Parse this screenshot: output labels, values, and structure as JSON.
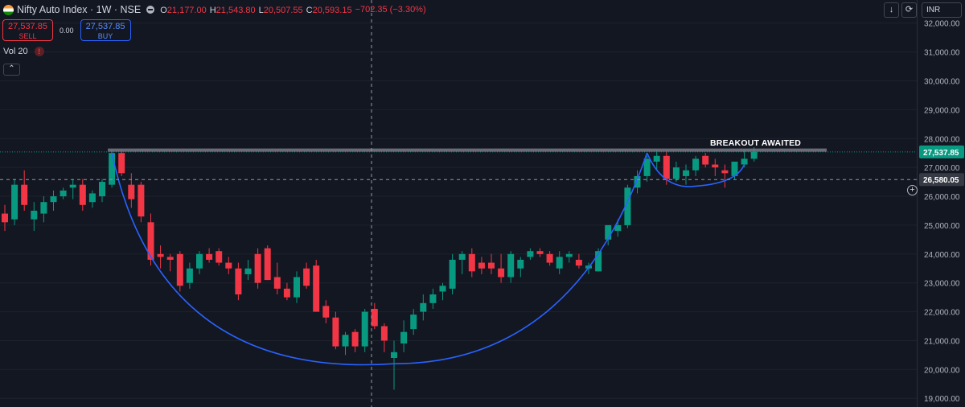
{
  "header": {
    "symbol": "Nifty Auto Index · 1W · NSE",
    "ohlc": [
      {
        "k": "O",
        "v": "21,177.00"
      },
      {
        "k": "H",
        "v": "21,543.80"
      },
      {
        "k": "L",
        "v": "20,507.55"
      },
      {
        "k": "C",
        "v": "20,593.15"
      }
    ],
    "change": "−702.35 (−3.30%)"
  },
  "trade": {
    "sell_price": "27,537.85",
    "sell_label": "SELL",
    "spread": "0.00",
    "buy_price": "27,537.85",
    "buy_label": "BUY"
  },
  "indicator": {
    "name": "Vol 20",
    "warning": "!"
  },
  "toolbar": {
    "collapse_icon": "chevron-up-icon",
    "download_icon": "arrow-down-icon",
    "replay_icon": "replay-icon",
    "currency": "INR"
  },
  "annotation": "BREAKOUT AWAITED",
  "price_labels": {
    "last": "27,537.85",
    "crosshair": "26,580.05"
  },
  "colors": {
    "up": "#089981",
    "down": "#f23645",
    "cup_line": "#2962ff",
    "resistance": "#787b86",
    "background": "#131722"
  },
  "chart_data": {
    "type": "candlestick",
    "yaxis": {
      "ticks": [
        "32,000.00",
        "31,000.00",
        "30,000.00",
        "29,000.00",
        "28,000.00",
        "27,000.00",
        "26,000.00",
        "25,000.00",
        "24,000.00",
        "23,000.00",
        "22,000.00",
        "21,000.00",
        "20,000.00",
        "19,000.00"
      ],
      "range": [
        18700,
        32800
      ]
    },
    "candles": [
      [
        25400,
        25700,
        24800,
        25100
      ],
      [
        25200,
        26600,
        25000,
        26400
      ],
      [
        26400,
        26900,
        25500,
        25700
      ],
      [
        25200,
        25800,
        24800,
        25500
      ],
      [
        25400,
        26000,
        25100,
        25800
      ],
      [
        25800,
        26200,
        25500,
        26000
      ],
      [
        26000,
        26300,
        25900,
        26200
      ],
      [
        26300,
        26600,
        25900,
        26400
      ],
      [
        26400,
        26600,
        25500,
        25700
      ],
      [
        25800,
        26200,
        25600,
        26100
      ],
      [
        26000,
        26600,
        25800,
        26500
      ],
      [
        26400,
        27600,
        26300,
        27500
      ],
      [
        27500,
        27600,
        26700,
        26800
      ],
      [
        26400,
        26800,
        25600,
        25900
      ],
      [
        26400,
        26500,
        25100,
        25300
      ],
      [
        25100,
        25400,
        23600,
        23800
      ],
      [
        24000,
        24300,
        23500,
        23900
      ],
      [
        23900,
        24000,
        23400,
        23800
      ],
      [
        24000,
        24100,
        22700,
        22900
      ],
      [
        23000,
        23700,
        22800,
        23500
      ],
      [
        23500,
        24100,
        23300,
        24000
      ],
      [
        24000,
        24200,
        23700,
        23800
      ],
      [
        24100,
        24200,
        23600,
        23700
      ],
      [
        23700,
        23900,
        23300,
        23500
      ],
      [
        23500,
        23700,
        22400,
        22600
      ],
      [
        23300,
        23800,
        23100,
        23500
      ],
      [
        24000,
        24200,
        22800,
        23000
      ],
      [
        24200,
        24300,
        23100,
        23100
      ],
      [
        23200,
        23700,
        22600,
        22800
      ],
      [
        22800,
        23000,
        22400,
        22500
      ],
      [
        22500,
        23400,
        22300,
        23200
      ],
      [
        23500,
        23700,
        22800,
        22900
      ],
      [
        23600,
        23800,
        22000,
        22000
      ],
      [
        22200,
        22400,
        21600,
        21800
      ],
      [
        21800,
        22000,
        20700,
        20800
      ],
      [
        20800,
        21300,
        20500,
        21200
      ],
      [
        21300,
        21400,
        20600,
        20800
      ],
      [
        20800,
        22100,
        20600,
        22000
      ],
      [
        22100,
        22300,
        21400,
        21500
      ],
      [
        21500,
        21600,
        20600,
        21000
      ],
      [
        20400,
        21000,
        19300,
        20600
      ],
      [
        20900,
        21700,
        20600,
        21300
      ],
      [
        21400,
        22100,
        21200,
        21900
      ],
      [
        22000,
        22600,
        21700,
        22300
      ],
      [
        22300,
        22800,
        22100,
        22600
      ],
      [
        22700,
        23000,
        22400,
        22900
      ],
      [
        22800,
        24000,
        22600,
        23800
      ],
      [
        23800,
        24100,
        23300,
        24000
      ],
      [
        24000,
        24200,
        23200,
        23400
      ],
      [
        23700,
        23900,
        23300,
        23500
      ],
      [
        23700,
        24000,
        23300,
        23500
      ],
      [
        23500,
        24000,
        23000,
        23200
      ],
      [
        23200,
        24100,
        23000,
        24000
      ],
      [
        23500,
        23900,
        23200,
        23800
      ],
      [
        23900,
        24200,
        23800,
        24100
      ],
      [
        24100,
        24200,
        23900,
        24000
      ],
      [
        24000,
        24100,
        23600,
        23700
      ],
      [
        23500,
        24100,
        23300,
        23900
      ],
      [
        23900,
        24100,
        23700,
        24000
      ],
      [
        23800,
        24000,
        23500,
        23600
      ],
      [
        23500,
        23700,
        23300,
        23600
      ],
      [
        23400,
        24200,
        23400,
        24100
      ],
      [
        24500,
        25000,
        24300,
        25000
      ],
      [
        24800,
        25200,
        24600,
        25000
      ],
      [
        25000,
        26400,
        24900,
        26300
      ],
      [
        26300,
        26900,
        26100,
        26700
      ],
      [
        26700,
        27400,
        26500,
        27300
      ],
      [
        27200,
        27600,
        26900,
        27400
      ],
      [
        27400,
        27600,
        26400,
        26600
      ],
      [
        26600,
        27200,
        26500,
        27000
      ],
      [
        26700,
        27100,
        26400,
        26900
      ],
      [
        26900,
        27400,
        26700,
        27300
      ],
      [
        27400,
        27500,
        27000,
        27100
      ],
      [
        27100,
        27300,
        26700,
        27000
      ],
      [
        26900,
        27100,
        26300,
        26800
      ],
      [
        26700,
        27100,
        26600,
        27200
      ],
      [
        27100,
        27600,
        27000,
        27300
      ],
      [
        27300,
        27700,
        27200,
        27540
      ]
    ]
  }
}
